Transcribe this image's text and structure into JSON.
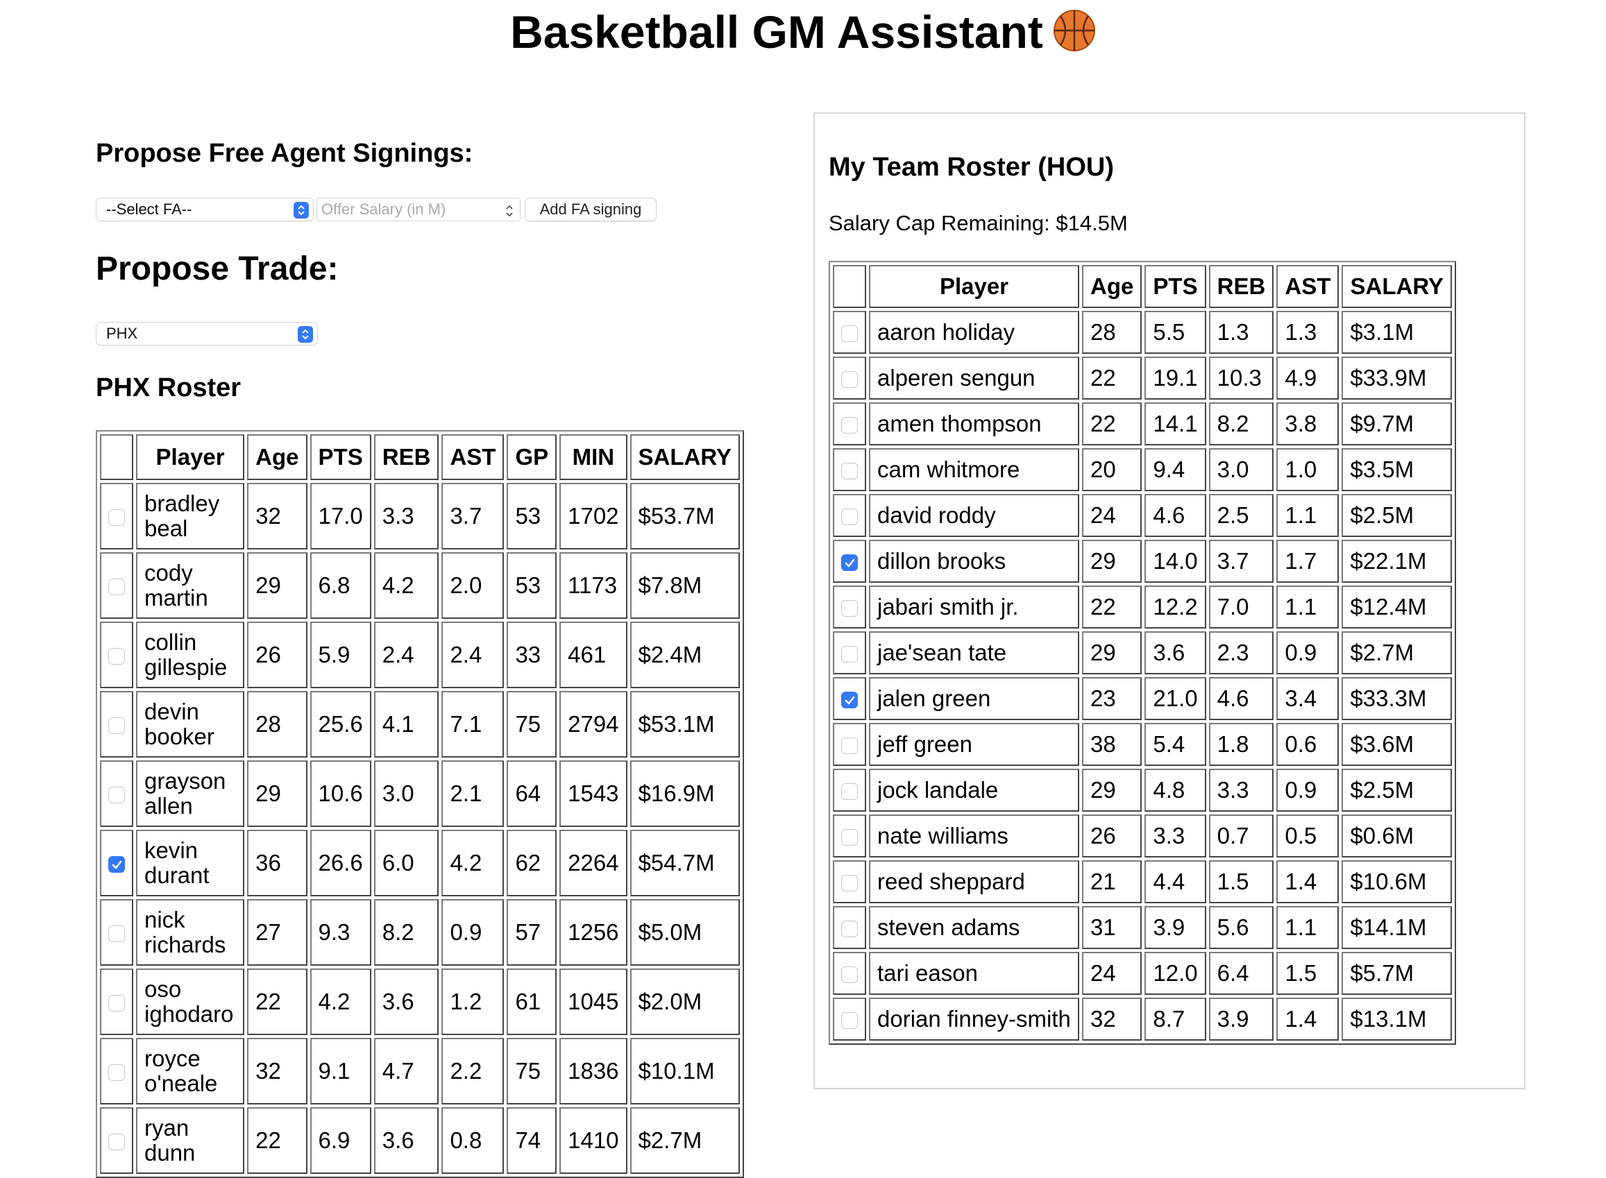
{
  "app": {
    "title": "Basketball GM Assistant",
    "title_icon": "basketball-icon"
  },
  "free_agents": {
    "heading": "Propose Free Agent Signings:",
    "select_value": "--Select FA--",
    "salary_placeholder": "Offer Salary (in M)",
    "add_button_label": "Add FA signing"
  },
  "trade": {
    "heading": "Propose Trade:",
    "team_select_value": "PHX"
  },
  "phx_roster": {
    "heading": "PHX Roster",
    "columns": [
      "",
      "Player",
      "Age",
      "PTS",
      "REB",
      "AST",
      "GP",
      "MIN",
      "SALARY"
    ],
    "rows": [
      {
        "checked": false,
        "player": "bradley beal",
        "age": "32",
        "pts": "17.0",
        "reb": "3.3",
        "ast": "3.7",
        "gp": "53",
        "min": "1702",
        "salary": "$53.7M"
      },
      {
        "checked": false,
        "player": "cody martin",
        "age": "29",
        "pts": "6.8",
        "reb": "4.2",
        "ast": "2.0",
        "gp": "53",
        "min": "1173",
        "salary": "$7.8M"
      },
      {
        "checked": false,
        "player": "collin gillespie",
        "age": "26",
        "pts": "5.9",
        "reb": "2.4",
        "ast": "2.4",
        "gp": "33",
        "min": "461",
        "salary": "$2.4M"
      },
      {
        "checked": false,
        "player": "devin booker",
        "age": "28",
        "pts": "25.6",
        "reb": "4.1",
        "ast": "7.1",
        "gp": "75",
        "min": "2794",
        "salary": "$53.1M"
      },
      {
        "checked": false,
        "player": "grayson allen",
        "age": "29",
        "pts": "10.6",
        "reb": "3.0",
        "ast": "2.1",
        "gp": "64",
        "min": "1543",
        "salary": "$16.9M"
      },
      {
        "checked": true,
        "player": "kevin durant",
        "age": "36",
        "pts": "26.6",
        "reb": "6.0",
        "ast": "4.2",
        "gp": "62",
        "min": "2264",
        "salary": "$54.7M"
      },
      {
        "checked": false,
        "player": "nick richards",
        "age": "27",
        "pts": "9.3",
        "reb": "8.2",
        "ast": "0.9",
        "gp": "57",
        "min": "1256",
        "salary": "$5.0M"
      },
      {
        "checked": false,
        "player": "oso ighodaro",
        "age": "22",
        "pts": "4.2",
        "reb": "3.6",
        "ast": "1.2",
        "gp": "61",
        "min": "1045",
        "salary": "$2.0M"
      },
      {
        "checked": false,
        "player": "royce o'neale",
        "age": "32",
        "pts": "9.1",
        "reb": "4.7",
        "ast": "2.2",
        "gp": "75",
        "min": "1836",
        "salary": "$10.1M"
      },
      {
        "checked": false,
        "player": "ryan dunn",
        "age": "22",
        "pts": "6.9",
        "reb": "3.6",
        "ast": "0.8",
        "gp": "74",
        "min": "1410",
        "salary": "$2.7M"
      }
    ]
  },
  "my_team": {
    "heading": "My Team Roster (HOU)",
    "cap_text": "Salary Cap Remaining: $14.5M",
    "columns": [
      "",
      "Player",
      "Age",
      "PTS",
      "REB",
      "AST",
      "SALARY"
    ],
    "rows": [
      {
        "checked": false,
        "player": "aaron holiday",
        "age": "28",
        "pts": "5.5",
        "reb": "1.3",
        "ast": "1.3",
        "salary": "$3.1M"
      },
      {
        "checked": false,
        "player": "alperen sengun",
        "age": "22",
        "pts": "19.1",
        "reb": "10.3",
        "ast": "4.9",
        "salary": "$33.9M"
      },
      {
        "checked": false,
        "player": "amen thompson",
        "age": "22",
        "pts": "14.1",
        "reb": "8.2",
        "ast": "3.8",
        "salary": "$9.7M"
      },
      {
        "checked": false,
        "player": "cam whitmore",
        "age": "20",
        "pts": "9.4",
        "reb": "3.0",
        "ast": "1.0",
        "salary": "$3.5M"
      },
      {
        "checked": false,
        "player": "david roddy",
        "age": "24",
        "pts": "4.6",
        "reb": "2.5",
        "ast": "1.1",
        "salary": "$2.5M"
      },
      {
        "checked": true,
        "player": "dillon brooks",
        "age": "29",
        "pts": "14.0",
        "reb": "3.7",
        "ast": "1.7",
        "salary": "$22.1M"
      },
      {
        "checked": false,
        "player": "jabari smith jr.",
        "age": "22",
        "pts": "12.2",
        "reb": "7.0",
        "ast": "1.1",
        "salary": "$12.4M"
      },
      {
        "checked": false,
        "player": "jae'sean tate",
        "age": "29",
        "pts": "3.6",
        "reb": "2.3",
        "ast": "0.9",
        "salary": "$2.7M"
      },
      {
        "checked": true,
        "player": "jalen green",
        "age": "23",
        "pts": "21.0",
        "reb": "4.6",
        "ast": "3.4",
        "salary": "$33.3M"
      },
      {
        "checked": false,
        "player": "jeff green",
        "age": "38",
        "pts": "5.4",
        "reb": "1.8",
        "ast": "0.6",
        "salary": "$3.6M"
      },
      {
        "checked": false,
        "player": "jock landale",
        "age": "29",
        "pts": "4.8",
        "reb": "3.3",
        "ast": "0.9",
        "salary": "$2.5M"
      },
      {
        "checked": false,
        "player": "nate williams",
        "age": "26",
        "pts": "3.3",
        "reb": "0.7",
        "ast": "0.5",
        "salary": "$0.6M"
      },
      {
        "checked": false,
        "player": "reed sheppard",
        "age": "21",
        "pts": "4.4",
        "reb": "1.5",
        "ast": "1.4",
        "salary": "$10.6M"
      },
      {
        "checked": false,
        "player": "steven adams",
        "age": "31",
        "pts": "3.9",
        "reb": "5.6",
        "ast": "1.1",
        "salary": "$14.1M"
      },
      {
        "checked": false,
        "player": "tari eason",
        "age": "24",
        "pts": "12.0",
        "reb": "6.4",
        "ast": "1.5",
        "salary": "$5.7M"
      },
      {
        "checked": false,
        "player": "dorian finney-smith",
        "age": "32",
        "pts": "8.7",
        "reb": "3.9",
        "ast": "1.4",
        "salary": "$13.1M"
      }
    ]
  },
  "colors": {
    "accent": "#3478f6",
    "placeholder": "#a9a9a9",
    "panel_border": "#d6d6d6"
  }
}
